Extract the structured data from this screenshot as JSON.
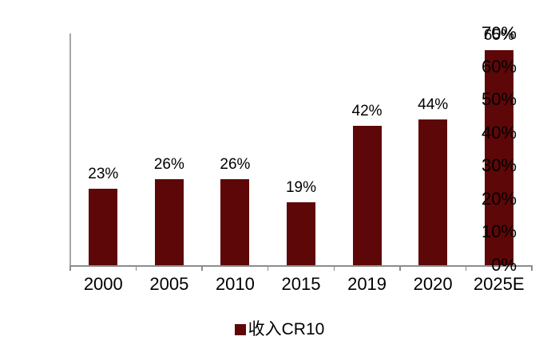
{
  "chart_data": {
    "type": "bar",
    "title": "",
    "categories": [
      "2000",
      "2005",
      "2010",
      "2015",
      "2019",
      "2020",
      "2025E"
    ],
    "values": [
      23,
      26,
      26,
      19,
      42,
      44,
      65
    ],
    "value_labels": [
      "23%",
      "26%",
      "26%",
      "19%",
      "42%",
      "44%",
      "65%"
    ],
    "y_ticks": [
      "70%",
      "60%",
      "50%",
      "40%",
      "30%",
      "20%",
      "10%",
      "0%"
    ],
    "ylim": [
      0,
      70
    ],
    "grid": false,
    "bar_color": "#5e0708",
    "axis_color": "#8c8c8c",
    "legend": {
      "position": "bottom-center",
      "entries": [
        {
          "label": "收入CR10",
          "color": "#5e0708"
        }
      ]
    }
  }
}
